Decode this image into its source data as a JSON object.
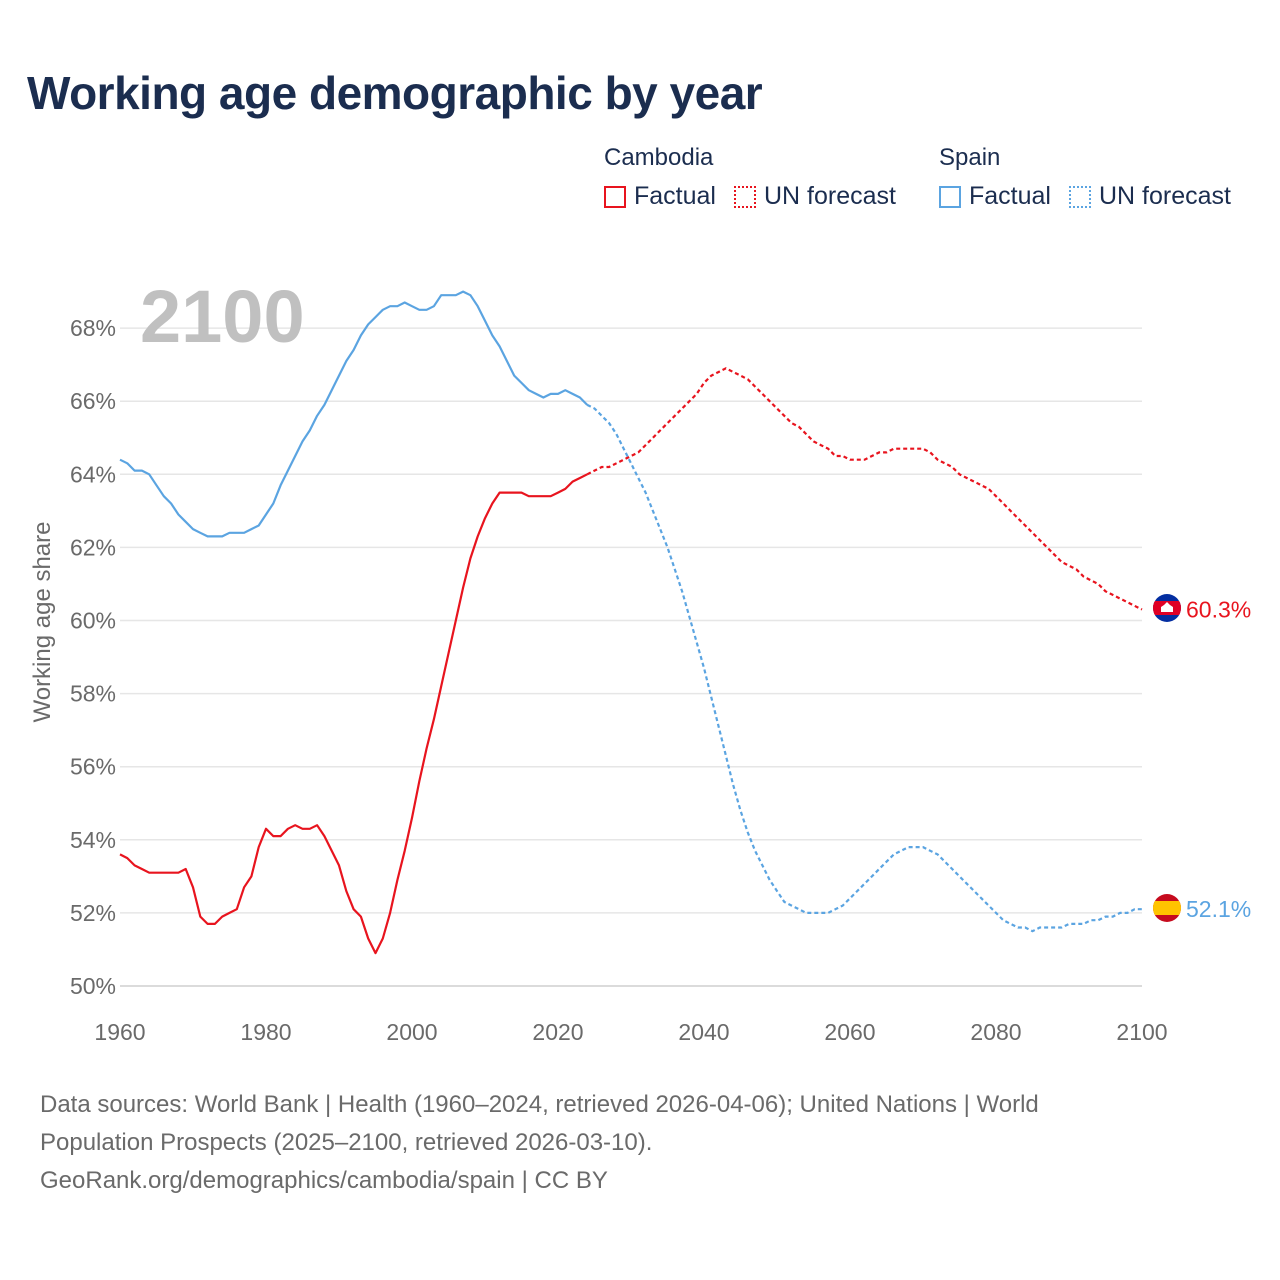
{
  "title": "Working age demographic by year",
  "legend": {
    "groups": [
      {
        "name": "Cambodia",
        "color": "#e8141e",
        "factual_label": "Factual",
        "forecast_label": "UN forecast"
      },
      {
        "name": "Spain",
        "color": "#5ba4e1",
        "factual_label": "Factual",
        "forecast_label": "UN forecast"
      }
    ]
  },
  "sources": {
    "line1": "Data sources: World Bank | Health (1960–2024, retrieved 2026-04-06); United Nations | World",
    "line2": "Population Prospects (2025–2100, retrieved 2026-03-10).",
    "line3": "GeoRank.org/demographics/cambodia/spain | CC BY"
  },
  "chart_data": {
    "type": "line",
    "year_watermark": "2100",
    "ylabel": "Working age share",
    "xlabel": "",
    "xlim": [
      1960,
      2100
    ],
    "ylim": [
      50,
      69.5
    ],
    "x_ticks": [
      1960,
      1980,
      2000,
      2020,
      2040,
      2060,
      2080,
      2100
    ],
    "y_ticks": [
      50,
      52,
      54,
      56,
      58,
      60,
      62,
      64,
      66,
      68
    ],
    "y_tick_suffix": "%",
    "grid": true,
    "series": [
      {
        "name": "Cambodia",
        "color": "#e8141e",
        "end_label": "60.3%",
        "flag": "cambodia",
        "factual": {
          "x": [
            1960,
            1961,
            1962,
            1963,
            1964,
            1965,
            1966,
            1967,
            1968,
            1969,
            1970,
            1971,
            1972,
            1973,
            1974,
            1975,
            1976,
            1977,
            1978,
            1979,
            1980,
            1981,
            1982,
            1983,
            1984,
            1985,
            1986,
            1987,
            1988,
            1989,
            1990,
            1991,
            1992,
            1993,
            1994,
            1995,
            1996,
            1997,
            1998,
            1999,
            2000,
            2001,
            2002,
            2003,
            2004,
            2005,
            2006,
            2007,
            2008,
            2009,
            2010,
            2011,
            2012,
            2013,
            2014,
            2015,
            2016,
            2017,
            2018,
            2019,
            2020,
            2021,
            2022,
            2023,
            2024
          ],
          "y": [
            53.6,
            53.5,
            53.3,
            53.2,
            53.1,
            53.1,
            53.1,
            53.1,
            53.1,
            53.2,
            52.7,
            51.9,
            51.7,
            51.7,
            51.9,
            52.0,
            52.1,
            52.7,
            53.0,
            53.8,
            54.3,
            54.1,
            54.1,
            54.3,
            54.4,
            54.3,
            54.3,
            54.4,
            54.1,
            53.7,
            53.3,
            52.6,
            52.1,
            51.9,
            51.3,
            50.9,
            51.3,
            52.0,
            52.9,
            53.7,
            54.6,
            55.6,
            56.5,
            57.3,
            58.2,
            59.1,
            60.0,
            60.9,
            61.7,
            62.3,
            62.8,
            63.2,
            63.5,
            63.5,
            63.5,
            63.5,
            63.4,
            63.4,
            63.4,
            63.4,
            63.5,
            63.6,
            63.8,
            63.9,
            64.0
          ]
        },
        "forecast": {
          "x": [
            2024,
            2025,
            2026,
            2027,
            2028,
            2029,
            2030,
            2031,
            2032,
            2033,
            2034,
            2035,
            2036,
            2037,
            2038,
            2039,
            2040,
            2041,
            2042,
            2043,
            2044,
            2045,
            2046,
            2047,
            2048,
            2049,
            2050,
            2051,
            2052,
            2053,
            2054,
            2055,
            2056,
            2057,
            2058,
            2059,
            2060,
            2061,
            2062,
            2063,
            2064,
            2065,
            2066,
            2067,
            2068,
            2069,
            2070,
            2071,
            2072,
            2073,
            2074,
            2075,
            2076,
            2077,
            2078,
            2079,
            2080,
            2081,
            2082,
            2083,
            2084,
            2085,
            2086,
            2087,
            2088,
            2089,
            2090,
            2091,
            2092,
            2093,
            2094,
            2095,
            2096,
            2097,
            2098,
            2099,
            2100
          ],
          "y": [
            64.0,
            64.1,
            64.2,
            64.2,
            64.3,
            64.4,
            64.5,
            64.6,
            64.8,
            65.0,
            65.2,
            65.4,
            65.6,
            65.8,
            66.0,
            66.2,
            66.5,
            66.7,
            66.8,
            66.9,
            66.8,
            66.7,
            66.6,
            66.4,
            66.2,
            66.0,
            65.8,
            65.6,
            65.4,
            65.3,
            65.1,
            64.9,
            64.8,
            64.7,
            64.5,
            64.5,
            64.4,
            64.4,
            64.4,
            64.5,
            64.6,
            64.6,
            64.7,
            64.7,
            64.7,
            64.7,
            64.7,
            64.6,
            64.4,
            64.3,
            64.2,
            64.0,
            63.9,
            63.8,
            63.7,
            63.6,
            63.4,
            63.2,
            63.0,
            62.8,
            62.6,
            62.4,
            62.2,
            62.0,
            61.8,
            61.6,
            61.5,
            61.4,
            61.2,
            61.1,
            61.0,
            60.8,
            60.7,
            60.6,
            60.5,
            60.4,
            60.3
          ]
        }
      },
      {
        "name": "Spain",
        "color": "#5ba4e1",
        "end_label": "52.1%",
        "flag": "spain",
        "factual": {
          "x": [
            1960,
            1961,
            1962,
            1963,
            1964,
            1965,
            1966,
            1967,
            1968,
            1969,
            1970,
            1971,
            1972,
            1973,
            1974,
            1975,
            1976,
            1977,
            1978,
            1979,
            1980,
            1981,
            1982,
            1983,
            1984,
            1985,
            1986,
            1987,
            1988,
            1989,
            1990,
            1991,
            1992,
            1993,
            1994,
            1995,
            1996,
            1997,
            1998,
            1999,
            2000,
            2001,
            2002,
            2003,
            2004,
            2005,
            2006,
            2007,
            2008,
            2009,
            2010,
            2011,
            2012,
            2013,
            2014,
            2015,
            2016,
            2017,
            2018,
            2019,
            2020,
            2021,
            2022,
            2023,
            2024
          ],
          "y": [
            64.4,
            64.3,
            64.1,
            64.1,
            64.0,
            63.7,
            63.4,
            63.2,
            62.9,
            62.7,
            62.5,
            62.4,
            62.3,
            62.3,
            62.3,
            62.4,
            62.4,
            62.4,
            62.5,
            62.6,
            62.9,
            63.2,
            63.7,
            64.1,
            64.5,
            64.9,
            65.2,
            65.6,
            65.9,
            66.3,
            66.7,
            67.1,
            67.4,
            67.8,
            68.1,
            68.3,
            68.5,
            68.6,
            68.6,
            68.7,
            68.6,
            68.5,
            68.5,
            68.6,
            68.9,
            68.9,
            68.9,
            69.0,
            68.9,
            68.6,
            68.2,
            67.8,
            67.5,
            67.1,
            66.7,
            66.5,
            66.3,
            66.2,
            66.1,
            66.2,
            66.2,
            66.3,
            66.2,
            66.1,
            65.9
          ]
        },
        "forecast": {
          "x": [
            2024,
            2025,
            2026,
            2027,
            2028,
            2029,
            2030,
            2031,
            2032,
            2033,
            2034,
            2035,
            2036,
            2037,
            2038,
            2039,
            2040,
            2041,
            2042,
            2043,
            2044,
            2045,
            2046,
            2047,
            2048,
            2049,
            2050,
            2051,
            2052,
            2053,
            2054,
            2055,
            2056,
            2057,
            2058,
            2059,
            2060,
            2061,
            2062,
            2063,
            2064,
            2065,
            2066,
            2067,
            2068,
            2069,
            2070,
            2071,
            2072,
            2073,
            2074,
            2075,
            2076,
            2077,
            2078,
            2079,
            2080,
            2081,
            2082,
            2083,
            2084,
            2085,
            2086,
            2087,
            2088,
            2089,
            2090,
            2091,
            2092,
            2093,
            2094,
            2095,
            2096,
            2097,
            2098,
            2099,
            2100
          ],
          "y": [
            65.9,
            65.8,
            65.6,
            65.4,
            65.1,
            64.7,
            64.3,
            63.9,
            63.5,
            63.0,
            62.5,
            62.0,
            61.4,
            60.8,
            60.1,
            59.4,
            58.7,
            57.9,
            57.1,
            56.3,
            55.5,
            54.8,
            54.2,
            53.7,
            53.3,
            52.9,
            52.6,
            52.3,
            52.2,
            52.1,
            52.0,
            52.0,
            52.0,
            52.0,
            52.1,
            52.2,
            52.4,
            52.6,
            52.8,
            53.0,
            53.2,
            53.4,
            53.6,
            53.7,
            53.8,
            53.8,
            53.8,
            53.7,
            53.6,
            53.4,
            53.2,
            53.0,
            52.8,
            52.6,
            52.4,
            52.2,
            52.0,
            51.8,
            51.7,
            51.6,
            51.6,
            51.5,
            51.6,
            51.6,
            51.6,
            51.6,
            51.7,
            51.7,
            51.7,
            51.8,
            51.8,
            51.9,
            51.9,
            52.0,
            52.0,
            52.1,
            52.1
          ]
        }
      }
    ]
  }
}
